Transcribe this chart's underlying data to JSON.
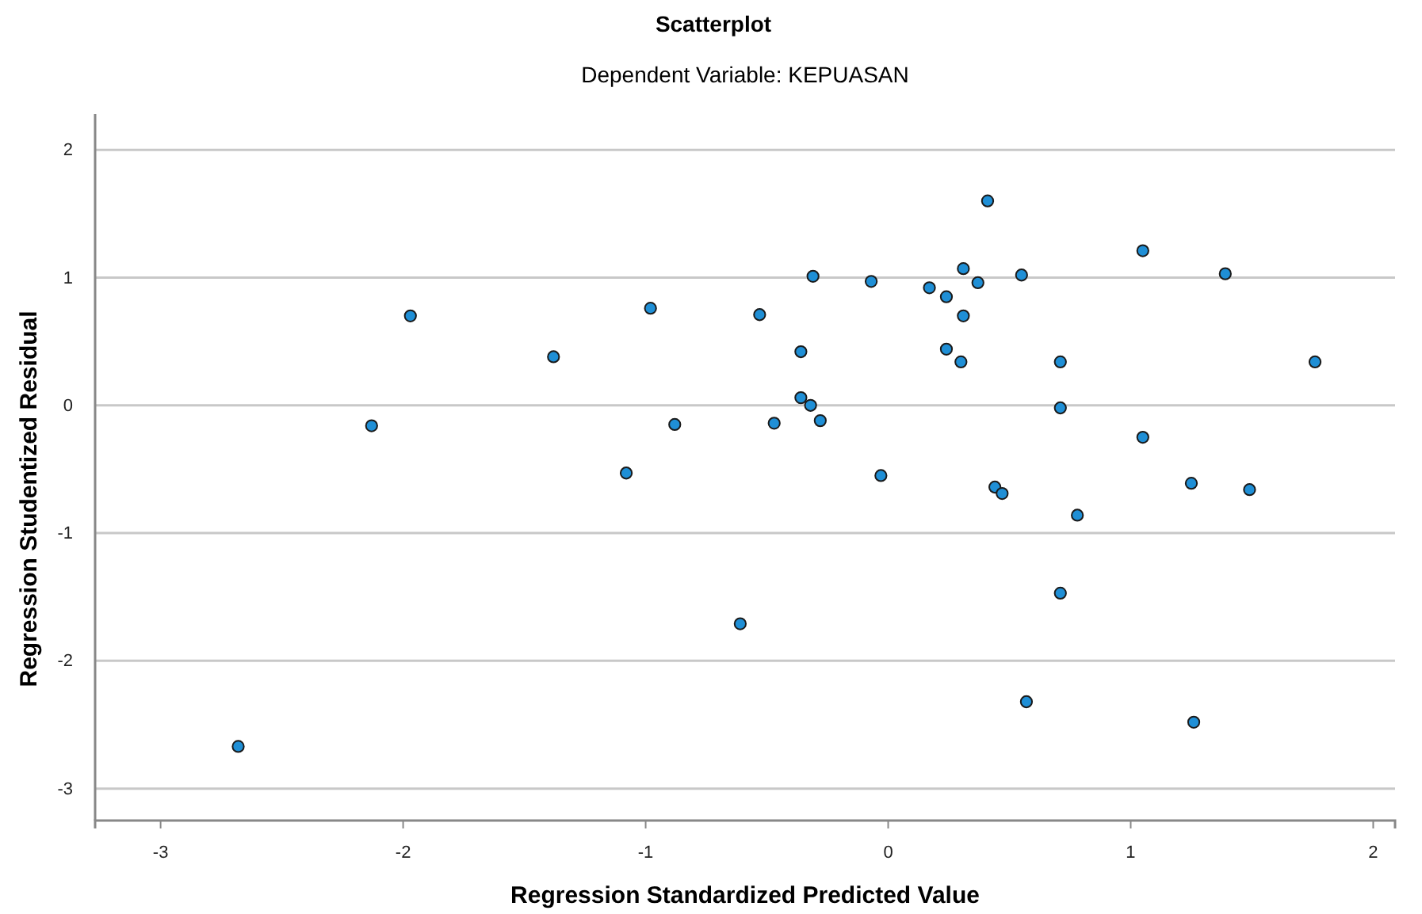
{
  "chart_data": {
    "type": "scatter",
    "title": "Scatterplot",
    "subtitle": "Dependent Variable: KEPUASAN",
    "xlabel": "Regression Standardized Predicted Value",
    "ylabel": "Regression Studentized Residual",
    "x": [
      -2.68,
      -2.13,
      -1.97,
      -1.38,
      -1.08,
      -0.98,
      -0.88,
      -0.53,
      -0.61,
      -0.47,
      -0.36,
      -0.36,
      -0.31,
      -0.32,
      -0.28,
      -0.07,
      -0.03,
      0.17,
      0.24,
      0.24,
      0.3,
      0.31,
      0.31,
      0.37,
      0.41,
      0.44,
      0.47,
      0.55,
      0.57,
      0.71,
      0.71,
      0.71,
      0.78,
      1.05,
      1.05,
      1.25,
      1.26,
      1.39,
      1.49,
      1.76
    ],
    "series": [
      {
        "color": "#1f8fd6",
        "values": [
          -2.67,
          -0.16,
          0.7,
          0.38,
          -0.53,
          0.76,
          -0.15,
          0.71,
          -1.71,
          -0.14,
          0.42,
          0.06,
          1.01,
          0.0,
          -0.12,
          0.97,
          -0.55,
          0.92,
          0.85,
          0.44,
          0.34,
          1.07,
          0.7,
          0.96,
          1.6,
          -0.64,
          -0.69,
          1.02,
          -2.32,
          0.34,
          -0.02,
          -1.47,
          -0.86,
          1.21,
          -0.25,
          -0.61,
          -2.48,
          1.03,
          -0.66,
          0.34
        ]
      }
    ],
    "xlim": [
      -3.27,
      2.09
    ],
    "ylim": [
      -3.25,
      2.28
    ],
    "xticks": [
      -3,
      -2,
      -1,
      0,
      1,
      2
    ],
    "yticks": [
      -3,
      -2,
      -1,
      0,
      1,
      2
    ],
    "grid": "y",
    "marker": "circle"
  }
}
